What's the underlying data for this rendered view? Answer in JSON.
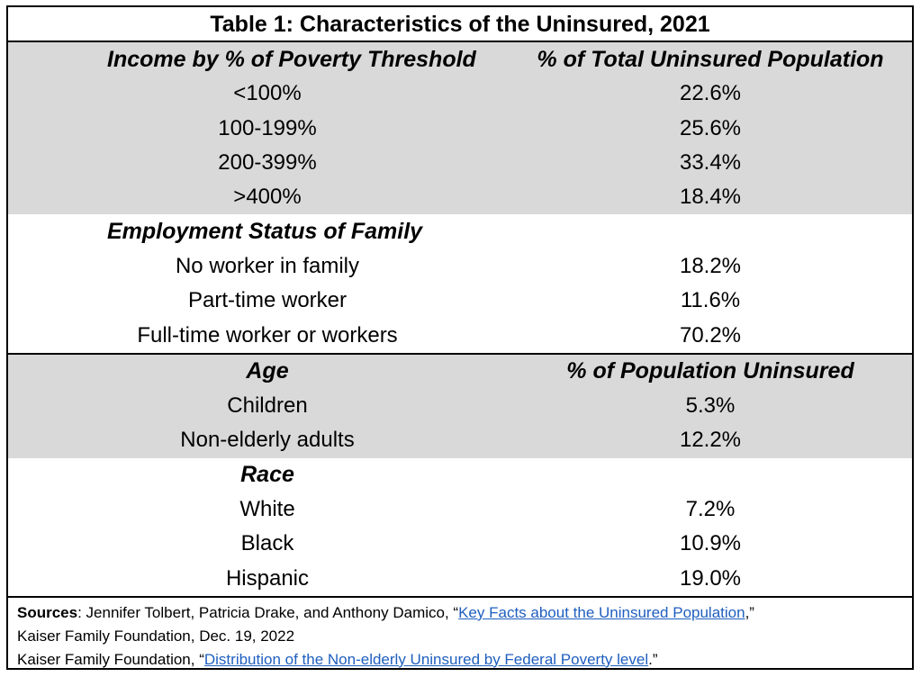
{
  "title": "Table 1: Characteristics of the Uninsured, 2021",
  "sections": [
    {
      "header": [
        "Income by % of Poverty Threshold",
        "% of Total Uninsured Population"
      ],
      "rows": [
        [
          "<100%",
          "22.6%"
        ],
        [
          "100-199%",
          "25.6%"
        ],
        [
          "200-399%",
          "33.4%"
        ],
        [
          ">400%",
          "18.4%"
        ]
      ]
    },
    {
      "header": [
        "Employment Status of Family",
        ""
      ],
      "rows": [
        [
          "No worker in family",
          "18.2%"
        ],
        [
          "Part-time worker",
          "11.6%"
        ],
        [
          "Full-time worker or workers",
          "70.2%"
        ]
      ]
    },
    {
      "header": [
        "Age",
        "% of Population Uninsured"
      ],
      "rows": [
        [
          "Children",
          "5.3%"
        ],
        [
          "Non-elderly adults",
          "12.2%"
        ]
      ]
    },
    {
      "header": [
        "Race",
        ""
      ],
      "rows": [
        [
          "White",
          "7.2%"
        ],
        [
          "Black",
          "10.9%"
        ],
        [
          "Hispanic",
          "19.0%"
        ]
      ]
    }
  ],
  "sources": {
    "label": "Sources",
    "line1_prefix": ": Jennifer Tolbert, Patricia Drake, and Anthony Damico, “",
    "line1_link": "Key Facts about the Uninsured Population",
    "line1_suffix": ",”",
    "line2": "Kaiser Family Foundation, Dec. 19, 2022",
    "line3_prefix": "Kaiser Family Foundation, “",
    "line3_link": "Distribution of the Non-elderly Uninsured by Federal Poverty level",
    "line3_suffix": ".”"
  }
}
